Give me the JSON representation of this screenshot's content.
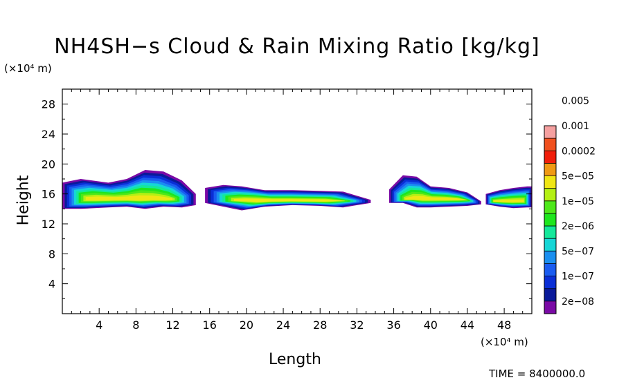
{
  "chart_data": {
    "type": "heatmap",
    "title": "NH4SH−s Cloud & Rain Mixing Ratio [kg/kg]",
    "xlabel": "Length",
    "ylabel": "Height",
    "x_unit": "(×10⁴ m)",
    "y_unit": "(×10⁴ m)",
    "xlim": [
      0,
      51
    ],
    "ylim": [
      0,
      30
    ],
    "xticks": [
      4,
      8,
      12,
      16,
      20,
      24,
      28,
      32,
      36,
      40,
      44,
      48
    ],
    "yticks": [
      4,
      8,
      12,
      16,
      20,
      24,
      28
    ],
    "grid": false,
    "legend_placement": "right",
    "time_label": "TIME = 8400000.0",
    "colorbar": {
      "colors": [
        "#7a0aa5",
        "#0a1a9a",
        "#0a2ed6",
        "#1a5cf0",
        "#1a8ff0",
        "#16d6d6",
        "#14e89a",
        "#1ee61e",
        "#4ee81a",
        "#b4f014",
        "#f0e614",
        "#f09a14",
        "#f01e0a",
        "#f0501e",
        "#f5a0a0"
      ],
      "labels": [
        "2e−08",
        "1e−07",
        "5e−07",
        "2e−06",
        "1e−05",
        "5e−05",
        "0.0002",
        "0.001",
        "0.005"
      ]
    },
    "cloud_regions": [
      {
        "x": [
          0.0,
          2.0,
          5.0,
          7.0,
          9.0,
          11.0,
          13.0,
          14.5
        ],
        "top": [
          17.5,
          18.0,
          17.5,
          18.0,
          19.2,
          19.0,
          17.8,
          16.0
        ],
        "base": [
          14.0,
          14.0,
          14.2,
          14.3,
          14.0,
          14.3,
          14.2,
          14.5
        ],
        "core": 15.3
      },
      {
        "x": [
          15.5,
          17.5,
          19.5,
          22.0,
          25.0,
          28.0,
          30.5,
          33.5
        ],
        "top": [
          16.8,
          17.2,
          17.0,
          16.5,
          16.5,
          16.4,
          16.3,
          15.2
        ],
        "base": [
          14.8,
          14.3,
          13.8,
          14.3,
          14.5,
          14.4,
          14.2,
          14.8
        ],
        "core": 15.1
      },
      {
        "x": [
          35.5,
          37.0,
          38.5,
          40.0,
          42.0,
          44.0,
          45.5
        ],
        "top": [
          16.6,
          18.5,
          18.3,
          17.0,
          16.8,
          16.2,
          15.0
        ],
        "base": [
          14.8,
          14.8,
          14.2,
          14.2,
          14.3,
          14.4,
          14.6
        ],
        "core": 15.3
      },
      {
        "x": [
          46.0,
          47.5,
          49.0,
          50.5,
          51.0
        ],
        "top": [
          16.0,
          16.5,
          16.8,
          17.0,
          17.0
        ],
        "base": [
          14.6,
          14.3,
          14.1,
          14.2,
          14.2
        ],
        "core": 15.0
      }
    ]
  }
}
